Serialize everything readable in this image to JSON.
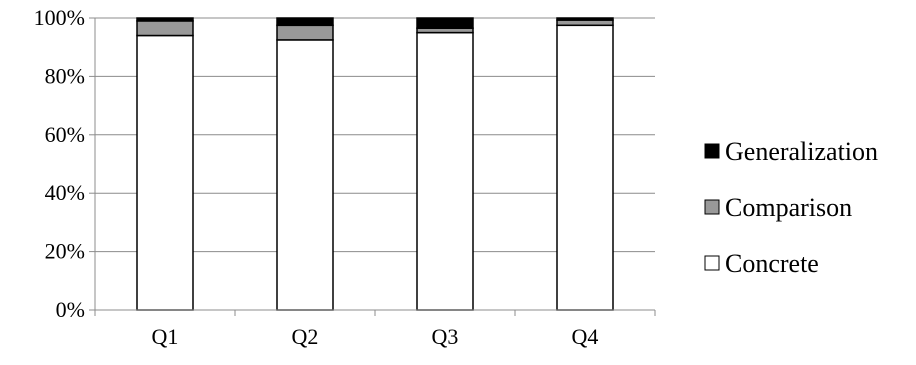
{
  "chart_data": {
    "type": "bar",
    "stacked": true,
    "percent_stacked": true,
    "categories": [
      "Q1",
      "Q2",
      "Q3",
      "Q4"
    ],
    "series": [
      {
        "name": "Concrete",
        "color": "#ffffff",
        "values": [
          94,
          92.5,
          95,
          97.5
        ]
      },
      {
        "name": "Comparison",
        "color": "#999999",
        "values": [
          5,
          5,
          1.5,
          1.8
        ]
      },
      {
        "name": "Generalization",
        "color": "#000000",
        "values": [
          1,
          2.5,
          3.5,
          0.7
        ]
      }
    ],
    "ylim": [
      0,
      100
    ],
    "yticks": [
      "0%",
      "20%",
      "40%",
      "60%",
      "80%",
      "100%"
    ],
    "grid": true,
    "legend": {
      "placement": "right",
      "order": [
        "Generalization",
        "Comparison",
        "Concrete"
      ]
    }
  }
}
